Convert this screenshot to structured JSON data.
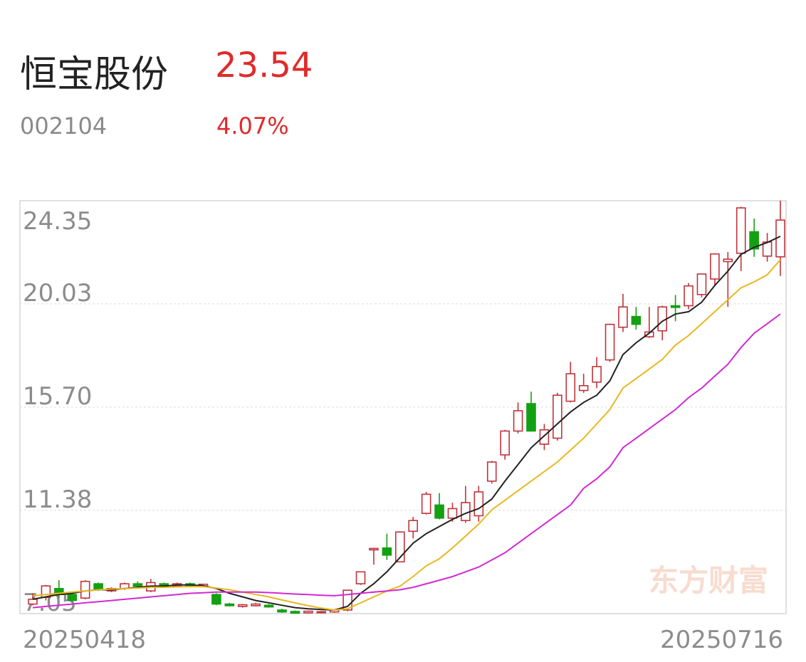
{
  "header": {
    "name": "恒宝股份",
    "price": 23.54,
    "code": "002104",
    "change": "4.07%"
  },
  "chart_data": {
    "type": "candlestick",
    "watermark": "东方财富",
    "categories": [
      "20250418",
      null,
      null,
      null,
      null,
      null,
      null,
      null,
      null,
      null,
      null,
      null,
      null,
      null,
      null,
      null,
      null,
      null,
      null,
      null,
      null,
      null,
      null,
      null,
      null,
      null,
      null,
      null,
      null,
      null,
      null,
      null,
      null,
      null,
      null,
      null,
      null,
      null,
      null,
      null,
      null,
      null,
      null,
      null,
      null,
      null,
      null,
      null,
      null,
      null,
      null,
      null,
      null,
      null,
      null,
      null,
      null,
      "20250716"
    ],
    "open": [
      7.45,
      7.73,
      8.1,
      7.85,
      7.7,
      8.3,
      8.0,
      8.1,
      8.3,
      8.0,
      8.3,
      8.2,
      8.3,
      8.2,
      7.85,
      7.45,
      7.35,
      7.38,
      7.4,
      7.2,
      7.14,
      7.08,
      7.09,
      7.12,
      7.2,
      8.3,
      9.72,
      9.8,
      9.22,
      10.5,
      11.25,
      11.6,
      11.05,
      10.95,
      11.15,
      12.6,
      13.7,
      14.7,
      15.85,
      14.15,
      14.4,
      15.95,
      16.4,
      16.75,
      17.68,
      19.05,
      19.5,
      18.65,
      18.9,
      19.95,
      19.95,
      20.42,
      21.07,
      21.8,
      22.15,
      23.05,
      22.03,
      22.0
    ],
    "high": [
      7.9,
      8.25,
      8.45,
      7.95,
      8.45,
      8.35,
      8.15,
      8.35,
      8.4,
      8.5,
      8.35,
      8.35,
      8.35,
      8.3,
      7.9,
      7.5,
      7.45,
      7.5,
      7.45,
      7.25,
      7.18,
      7.18,
      7.16,
      7.24,
      8.05,
      8.8,
      9.8,
      10.4,
      10.5,
      11.1,
      12.15,
      12.1,
      11.7,
      12.4,
      12.4,
      13.45,
      14.75,
      15.9,
      16.35,
      15.0,
      16.3,
      17.6,
      17.1,
      17.8,
      19.2,
      20.45,
      19.9,
      19.9,
      19.95,
      20.4,
      20.9,
      21.3,
      22.15,
      22.2,
      24.1,
      23.6,
      23.0,
      24.35
    ],
    "low": [
      7.4,
      7.6,
      7.7,
      7.55,
      7.65,
      8.0,
      7.95,
      8.05,
      8.15,
      7.95,
      8.15,
      8.15,
      8.15,
      8.15,
      7.4,
      7.35,
      7.3,
      7.35,
      7.3,
      7.08,
      7.05,
      7.05,
      7.06,
      7.08,
      7.15,
      8.25,
      9.1,
      9.3,
      9.2,
      10.2,
      11.2,
      11.0,
      10.9,
      10.85,
      10.9,
      12.5,
      13.5,
      14.6,
      14.7,
      13.9,
      14.3,
      15.9,
      16.3,
      16.5,
      17.6,
      18.85,
      18.95,
      18.6,
      18.5,
      19.3,
      19.8,
      20.3,
      20.8,
      19.9,
      21.4,
      22.0,
      21.8,
      21.2
    ],
    "close": [
      7.65,
      8.21,
      7.85,
      7.6,
      8.4,
      8.05,
      8.1,
      8.3,
      8.2,
      8.35,
      8.2,
      8.3,
      8.2,
      8.28,
      7.45,
      7.38,
      7.42,
      7.45,
      7.33,
      7.12,
      7.07,
      7.15,
      7.13,
      7.2,
      8.03,
      8.8,
      9.78,
      9.5,
      10.47,
      10.95,
      12.05,
      11.05,
      11.45,
      11.7,
      12.15,
      13.4,
      14.7,
      15.55,
      14.7,
      14.75,
      16.2,
      17.1,
      16.6,
      17.4,
      19.17,
      19.9,
      19.17,
      18.85,
      19.9,
      19.88,
      20.78,
      21.28,
      22.12,
      21.9,
      24.05,
      22.33,
      22.62,
      23.54
    ],
    "up_color": "#c0343c",
    "down_color": "#14a014",
    "series": [
      {
        "color": "#222222",
        "values": [
          7.65,
          7.75,
          7.85,
          7.9,
          8.0,
          8.05,
          8.05,
          8.1,
          8.15,
          8.2,
          8.2,
          8.25,
          8.25,
          8.22,
          8.1,
          7.9,
          7.75,
          7.6,
          7.5,
          7.4,
          7.3,
          7.25,
          7.22,
          7.2,
          7.35,
          7.9,
          8.3,
          8.8,
          9.4,
          10.0,
          10.4,
          10.7,
          11.0,
          11.25,
          11.45,
          11.85,
          12.6,
          13.3,
          14.0,
          14.5,
          15.0,
          15.5,
          15.9,
          16.2,
          16.8,
          17.9,
          18.4,
          18.8,
          19.3,
          19.6,
          19.7,
          20.1,
          20.8,
          21.4,
          22.1,
          22.4,
          22.6,
          22.86
        ]
      },
      {
        "color": "#e8b820",
        "values": [
          7.8,
          7.85,
          7.9,
          7.95,
          8.0,
          8.05,
          8.08,
          8.1,
          8.12,
          8.15,
          8.15,
          8.17,
          8.18,
          8.18,
          8.12,
          8.05,
          7.95,
          7.85,
          7.75,
          7.62,
          7.5,
          7.38,
          7.28,
          7.2,
          7.25,
          7.5,
          7.75,
          8.0,
          8.2,
          8.6,
          9.05,
          9.35,
          9.8,
          10.3,
          10.8,
          11.4,
          11.8,
          12.2,
          12.6,
          13.0,
          13.4,
          13.9,
          14.4,
          15.0,
          15.6,
          16.5,
          16.9,
          17.3,
          17.7,
          18.3,
          18.7,
          19.2,
          19.7,
          20.2,
          20.7,
          20.95,
          21.25,
          21.88
        ]
      },
      {
        "color": "#d22ad2",
        "values": [
          7.3,
          7.35,
          7.4,
          7.45,
          7.5,
          7.55,
          7.6,
          7.65,
          7.7,
          7.75,
          7.8,
          7.85,
          7.9,
          7.92,
          7.95,
          7.95,
          7.95,
          7.95,
          7.93,
          7.9,
          7.87,
          7.85,
          7.82,
          7.8,
          7.85,
          7.9,
          7.95,
          8.0,
          8.05,
          8.15,
          8.3,
          8.45,
          8.6,
          8.8,
          9.0,
          9.3,
          9.6,
          10.0,
          10.4,
          10.8,
          11.2,
          11.6,
          12.3,
          12.7,
          13.2,
          14.0,
          14.4,
          14.8,
          15.2,
          15.6,
          16.1,
          16.5,
          17.0,
          17.5,
          18.2,
          18.8,
          19.2,
          19.6
        ]
      }
    ],
    "ylim": [
      7.05,
      24.35
    ],
    "yticks": [
      24.35,
      20.03,
      {
        "value": 15.7,
        "label": "15.70"
      },
      11.38,
      7.05
    ],
    "grid": true
  }
}
